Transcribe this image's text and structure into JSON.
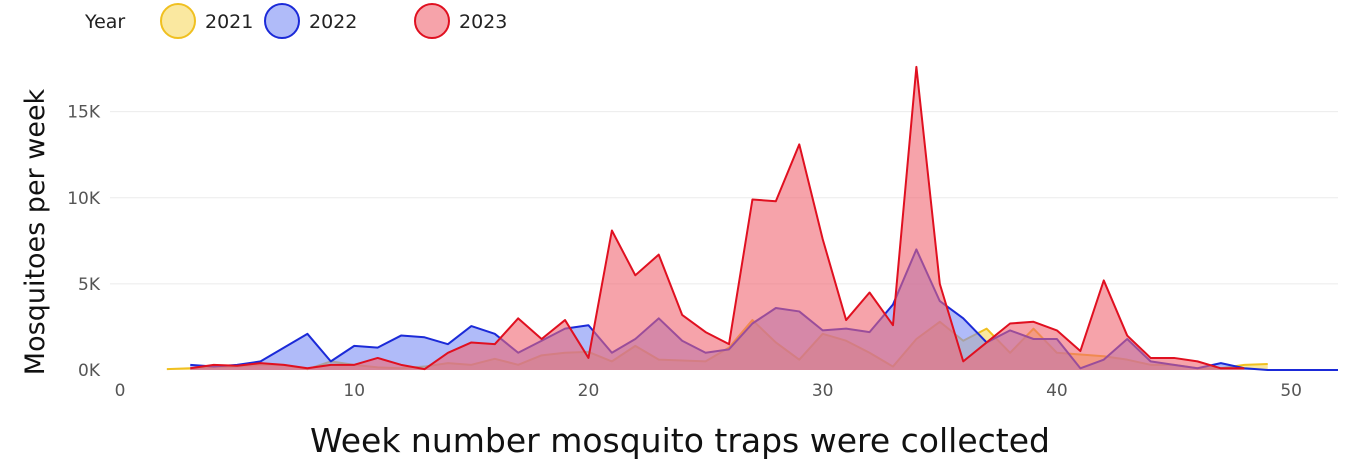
{
  "chart_data": {
    "type": "area",
    "title": "",
    "xlabel": "Week number mosquito traps were collected",
    "ylabel": "Mosquitoes per week",
    "xlim": [
      0,
      52
    ],
    "ylim": [
      0,
      18000
    ],
    "x_ticks": [
      0,
      10,
      20,
      30,
      40,
      50
    ],
    "y_ticks": [
      0,
      5000,
      10000,
      15000
    ],
    "y_tick_labels": [
      "0K",
      "5K",
      "10K",
      "15K"
    ],
    "grid": "horizontal",
    "legend": {
      "title": "Year",
      "placement": "top-left",
      "entries": [
        "2021",
        "2022",
        "2023"
      ]
    },
    "series": [
      {
        "name": "2021",
        "fill": "#f6d860",
        "stroke": "#f0c020",
        "x": [
          2,
          3,
          4,
          5,
          6,
          7,
          8,
          9,
          10,
          11,
          12,
          13,
          14,
          15,
          16,
          17,
          18,
          19,
          20,
          21,
          22,
          23,
          24,
          25,
          26,
          27,
          28,
          29,
          30,
          31,
          32,
          33,
          34,
          35,
          36,
          37,
          38,
          39,
          40,
          41,
          42,
          43,
          44,
          45,
          46,
          47,
          48,
          49
        ],
        "y": [
          50,
          100,
          150,
          200,
          300,
          300,
          50,
          500,
          300,
          150,
          100,
          200,
          400,
          300,
          650,
          300,
          850,
          1000,
          1050,
          500,
          1400,
          600,
          550,
          500,
          1300,
          2900,
          1600,
          600,
          2100,
          1700,
          1000,
          200,
          1800,
          2800,
          1700,
          2400,
          1000,
          2400,
          1000,
          900,
          800,
          600,
          300,
          300,
          100,
          100,
          300,
          350
        ]
      },
      {
        "name": "2022",
        "fill": "#7b8ef5",
        "stroke": "#1b2ad8",
        "x": [
          3,
          4,
          5,
          6,
          7,
          8,
          9,
          10,
          11,
          12,
          13,
          14,
          15,
          16,
          17,
          18,
          19,
          20,
          21,
          22,
          23,
          24,
          25,
          26,
          27,
          28,
          29,
          30,
          31,
          32,
          33,
          34,
          35,
          36,
          37,
          38,
          39,
          40,
          41,
          42,
          43,
          44,
          45,
          46,
          47,
          48,
          49,
          50,
          51,
          52
        ],
        "y": [
          300,
          200,
          300,
          500,
          1300,
          2100,
          500,
          1400,
          1300,
          2000,
          1900,
          1500,
          2550,
          2100,
          1000,
          1700,
          2400,
          2600,
          1000,
          1800,
          3000,
          1700,
          1000,
          1200,
          2700,
          3600,
          3400,
          2300,
          2400,
          2200,
          3800,
          7000,
          4000,
          3000,
          1600,
          2300,
          1800,
          1800,
          100,
          600,
          1800,
          500,
          300,
          100,
          400,
          100,
          0,
          0,
          0,
          0
        ]
      },
      {
        "name": "2023",
        "fill": "#f06672",
        "stroke": "#e01020",
        "x": [
          3,
          4,
          5,
          6,
          7,
          8,
          9,
          10,
          11,
          12,
          13,
          14,
          15,
          16,
          17,
          18,
          19,
          20,
          21,
          22,
          23,
          24,
          25,
          26,
          27,
          28,
          29,
          30,
          31,
          32,
          33,
          34,
          35,
          36,
          37,
          38,
          39,
          40,
          41,
          42,
          43,
          44,
          45,
          46,
          47,
          48
        ],
        "y": [
          100,
          300,
          250,
          400,
          300,
          100,
          300,
          300,
          700,
          300,
          50,
          1000,
          1600,
          1500,
          3000,
          1800,
          2900,
          700,
          8100,
          5500,
          6700,
          3200,
          2200,
          1500,
          9900,
          9800,
          13100,
          7600,
          2900,
          4500,
          2600,
          17600,
          5000,
          500,
          1600,
          2700,
          2800,
          2300,
          1100,
          5200,
          2000,
          700,
          700,
          500,
          100,
          100
        ]
      }
    ]
  }
}
